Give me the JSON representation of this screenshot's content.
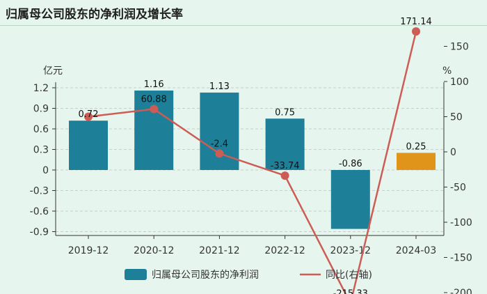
{
  "title": "归属母公司股东的净利润及增长率",
  "chart_data": {
    "type": "bar+line",
    "categories": [
      "2019-12",
      "2020-12",
      "2021-12",
      "2022-12",
      "2023-12",
      "2024-03"
    ],
    "series": [
      {
        "name": "归属母公司股东的净利润",
        "type": "bar",
        "axis": "left",
        "values": [
          0.72,
          1.16,
          1.13,
          0.75,
          -0.86,
          0.25
        ],
        "labels": [
          "0.72",
          "1.16",
          "1.13",
          "0.75",
          "-0.86",
          "0.25"
        ],
        "color": "#1e7f99",
        "highlight_color": "#e0941a",
        "highlight_index": 5
      },
      {
        "name": "同比(右轴)",
        "type": "line",
        "axis": "right",
        "values": [
          50,
          60.88,
          -2.4,
          -33.74,
          -215.33,
          171.14
        ],
        "labels": [
          "",
          "60.88",
          "-2.4",
          "-33.74",
          "-215.33",
          "171.14"
        ],
        "color": "#cd5c55"
      }
    ],
    "left_axis": {
      "unit": "亿元",
      "ticks": [
        1.2,
        0.9,
        0.6,
        0.3,
        0,
        -0.3,
        -0.6,
        -0.9
      ],
      "tick_labels": [
        "1.2",
        "0.9",
        "0.6",
        "0.3",
        "0",
        "-0.3",
        "-0.6",
        "-0.9"
      ],
      "ylim": [
        -0.93,
        1.2
      ]
    },
    "right_axis": {
      "unit": "%",
      "ticks": [
        150,
        100,
        50,
        0,
        -50,
        -100,
        -150,
        -200
      ],
      "tick_labels": [
        "150",
        "100",
        "50",
        "0",
        "-50",
        "-100",
        "-150",
        "-200"
      ]
    },
    "grid": true,
    "legend_position": "bottom"
  },
  "colors": {
    "background": "#e6f5ed",
    "grid": "#c6cfcb",
    "axis": "#333333"
  }
}
